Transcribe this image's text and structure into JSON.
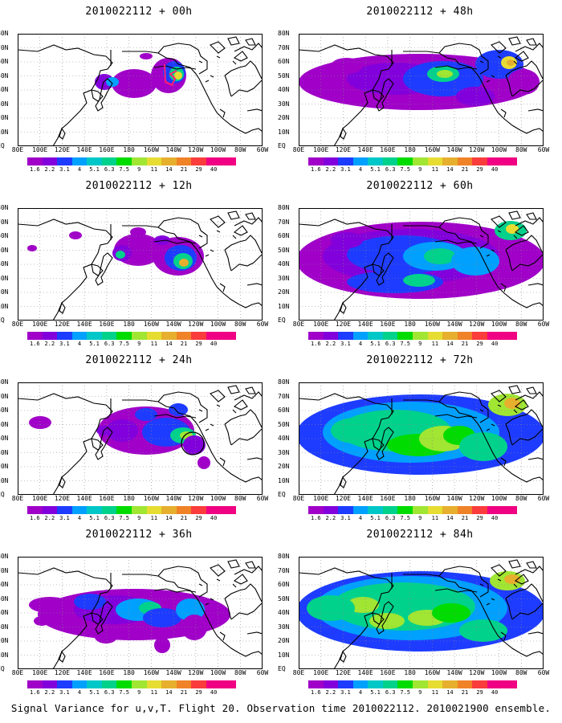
{
  "chart_data": {
    "type": "heatmap",
    "caption": "Signal Variance for u,v,T. Flight 20. Observation time 2010022112. 2010021900 ensemble.",
    "y_ticks": [
      "EQ",
      "10N",
      "20N",
      "30N",
      "40N",
      "50N",
      "60N",
      "70N",
      "80N"
    ],
    "x_ticks": [
      "80E",
      "100E",
      "120E",
      "140E",
      "160E",
      "180",
      "160W",
      "140W",
      "120W",
      "100W",
      "80W",
      "60W"
    ],
    "colorbar": {
      "levels": [
        "1.6",
        "2.2",
        "3.1",
        "4",
        "5.1",
        "6.3",
        "7.5",
        "9",
        "11",
        "14",
        "21",
        "29",
        "40"
      ],
      "colors": [
        "#a000c8",
        "#8200dc",
        "#1e3cff",
        "#00a0ff",
        "#00c8c8",
        "#00d28c",
        "#00dc00",
        "#a0e632",
        "#e6dc32",
        "#e6af2d",
        "#f08228",
        "#fa3c3c",
        "#f00082"
      ]
    },
    "panels": [
      {
        "title": "2010022112 + 00h",
        "lead": "00h"
      },
      {
        "title": "2010022112 + 48h",
        "lead": "48h"
      },
      {
        "title": "2010022112 + 12h",
        "lead": "12h"
      },
      {
        "title": "2010022112 + 60h",
        "lead": "60h"
      },
      {
        "title": "2010022112 + 24h",
        "lead": "24h"
      },
      {
        "title": "2010022112 + 72h",
        "lead": "72h"
      },
      {
        "title": "2010022112 + 36h",
        "lead": "36h"
      },
      {
        "title": "2010022112 + 84h",
        "lead": "84h"
      }
    ]
  }
}
